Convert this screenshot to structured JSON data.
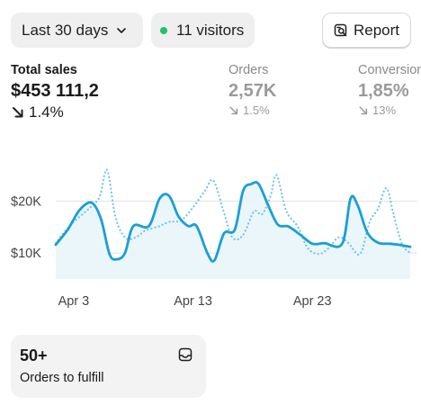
{
  "filters": {
    "range_label": "Last 30 days",
    "visitors_label": "11 visitors",
    "visitors_dot_color": "#1fc26b",
    "report_label": "Report"
  },
  "metrics": {
    "total_sales": {
      "label": "Total sales",
      "value": "$453 111,2",
      "delta": "1.4%",
      "direction": "down"
    },
    "orders": {
      "label": "Orders",
      "value": "2,57K",
      "delta": "1.5%",
      "direction": "down"
    },
    "conversion": {
      "label": "Conversion",
      "value": "1,85%",
      "delta": "13%",
      "direction": "down"
    }
  },
  "chart_data": {
    "type": "line",
    "title": "",
    "xlabel": "",
    "ylabel": "",
    "x_tick_labels": [
      "Apr 3",
      "Apr 13",
      "Apr 23"
    ],
    "x_tick_days": [
      3,
      13,
      23
    ],
    "y_tick_labels": [
      "$20K",
      "$10K"
    ],
    "y_tick_values": [
      20000,
      10000
    ],
    "ylim": [
      5000,
      31000
    ],
    "xlim": [
      1.5,
      31.2
    ],
    "grid": true,
    "colors": {
      "current": "#1a9fd6",
      "previous": "#6cc6e6",
      "fill": "#e9f5fb",
      "grid": "#e2e2e2"
    },
    "series": [
      {
        "style": "solid",
        "points": [
          [
            1.5,
            11600
          ],
          [
            2.5,
            14500
          ],
          [
            3.5,
            18300
          ],
          [
            4.5,
            19700
          ],
          [
            5.3,
            16500
          ],
          [
            6.0,
            9800
          ],
          [
            6.6,
            8800
          ],
          [
            7.3,
            10000
          ],
          [
            8.0,
            15200
          ],
          [
            9.3,
            15200
          ],
          [
            10.2,
            20500
          ],
          [
            11.0,
            21000
          ],
          [
            11.8,
            17000
          ],
          [
            12.6,
            15200
          ],
          [
            13.3,
            15200
          ],
          [
            14.2,
            10000
          ],
          [
            14.8,
            8600
          ],
          [
            15.6,
            13800
          ],
          [
            16.5,
            14500
          ],
          [
            17.2,
            22000
          ],
          [
            17.9,
            23300
          ],
          [
            18.5,
            23300
          ],
          [
            19.3,
            19200
          ],
          [
            20.1,
            15500
          ],
          [
            21.0,
            15100
          ],
          [
            22.0,
            13500
          ],
          [
            23.0,
            11800
          ],
          [
            24.0,
            11900
          ],
          [
            25.5,
            11800
          ],
          [
            26.2,
            20500
          ],
          [
            26.8,
            19200
          ],
          [
            27.6,
            14000
          ],
          [
            28.5,
            12000
          ],
          [
            29.5,
            11800
          ],
          [
            30.2,
            11600
          ],
          [
            31.2,
            11200
          ]
        ]
      },
      {
        "style": "dotted",
        "points": [
          [
            1.5,
            11900
          ],
          [
            2.5,
            14800
          ],
          [
            3.5,
            17000
          ],
          [
            4.5,
            19000
          ],
          [
            5.2,
            21000
          ],
          [
            5.8,
            26000
          ],
          [
            6.5,
            17000
          ],
          [
            7.3,
            13000
          ],
          [
            8.2,
            13000
          ],
          [
            9.0,
            14300
          ],
          [
            10.2,
            15200
          ],
          [
            11.0,
            16000
          ],
          [
            12.0,
            16300
          ],
          [
            13.0,
            18800
          ],
          [
            14.0,
            22000
          ],
          [
            14.7,
            24000
          ],
          [
            15.5,
            18500
          ],
          [
            16.3,
            13000
          ],
          [
            17.2,
            13500
          ],
          [
            18.1,
            18000
          ],
          [
            18.8,
            17500
          ],
          [
            19.5,
            21000
          ],
          [
            20.0,
            25000
          ],
          [
            20.8,
            18200
          ],
          [
            21.8,
            15000
          ],
          [
            22.6,
            11000
          ],
          [
            23.5,
            9800
          ],
          [
            24.3,
            10800
          ],
          [
            25.2,
            13000
          ],
          [
            26.0,
            12000
          ],
          [
            27.0,
            9800
          ],
          [
            27.8,
            16000
          ],
          [
            28.5,
            18500
          ],
          [
            29.2,
            22500
          ],
          [
            29.8,
            17500
          ],
          [
            30.5,
            11800
          ],
          [
            31.2,
            10000
          ]
        ]
      }
    ]
  },
  "fulfillment": {
    "count": "50+",
    "label": "Orders to fulfill"
  }
}
